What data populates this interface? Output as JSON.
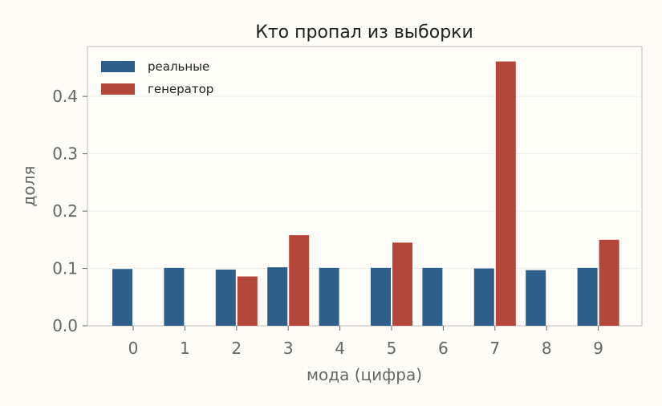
{
  "chart_data": {
    "type": "bar",
    "title": "Кто пропал из выборки",
    "xlabel": "мода (цифра)",
    "ylabel": "доля",
    "categories": [
      "0",
      "1",
      "2",
      "3",
      "4",
      "5",
      "6",
      "7",
      "8",
      "9"
    ],
    "series": [
      {
        "name": "реальные",
        "color": "#2e5f8a",
        "values": [
          0.099,
          0.101,
          0.098,
          0.102,
          0.101,
          0.101,
          0.101,
          0.1,
          0.097,
          0.101
        ]
      },
      {
        "name": "генератор",
        "color": "#b5473a",
        "values": [
          0,
          0,
          0.086,
          0.158,
          0,
          0.145,
          0,
          0.461,
          0,
          0.15
        ]
      }
    ],
    "ylim": [
      0,
      0.487
    ],
    "yticks": [
      "0.0",
      "0.1",
      "0.2",
      "0.3",
      "0.4"
    ],
    "grid": true,
    "legend_position": "top-left"
  }
}
